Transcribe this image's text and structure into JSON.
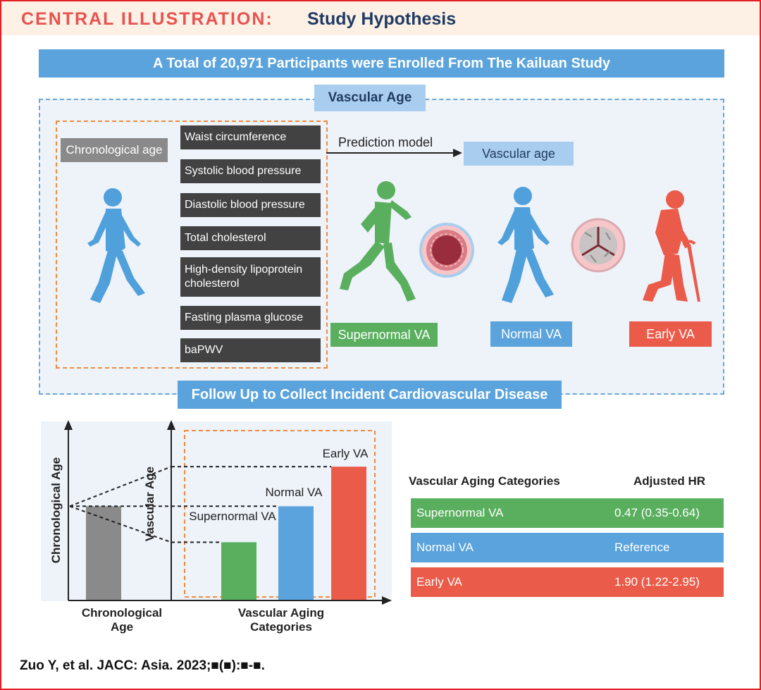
{
  "header": {
    "label": "CENTRAL ILLUSTRATION:",
    "title": "Study Hypothesis"
  },
  "banner_top": "A Total of 20,971 Participants were Enrolled From The Kailuan Study",
  "vascular_age_section": {
    "title": "Vascular Age",
    "chronological_age_label": "Chronological age",
    "variables": [
      "Waist circumference",
      "Systolic blood pressure",
      "Diastolic blood pressure",
      "Total cholesterol",
      "High-density lipoprotein cholesterol",
      "Fasting plasma glucose",
      "baPWV"
    ],
    "prediction_model_label": "Prediction model",
    "vascular_age_label": "Vascular age",
    "categories": [
      {
        "label": "Supernormal VA",
        "color": "#5aaf5f"
      },
      {
        "label": "Normal VA",
        "color": "#5aa3dc"
      },
      {
        "label": "Early VA",
        "color": "#ea5b4a"
      }
    ]
  },
  "banner_followup": "Follow Up to Collect Incident Cardiovascular Disease",
  "chart": {
    "y_label_left": "Chronological Age",
    "y_label_right": "Vascular Age",
    "x_label_left": "Chronological Age",
    "x_label_right": "Vascular Aging Categories",
    "bar_labels": {
      "supernormal": "Supernormal VA",
      "normal": "Normal VA",
      "early": "Early VA"
    },
    "colors": {
      "chronological": "#8a8a8a",
      "supernormal": "#5aaf5f",
      "normal": "#5aa3dc",
      "early": "#ea5b4a"
    }
  },
  "chart_data": {
    "type": "bar",
    "categories": [
      "Chronological Age",
      "Supernormal VA",
      "Normal VA",
      "Early VA"
    ],
    "values": [
      2.6,
      1.6,
      2.6,
      3.7
    ],
    "ylim": [
      0,
      4.8
    ],
    "title": "",
    "xlabel": "Vascular Aging Categories",
    "ylabel": "Vascular Age",
    "note": "schematic, unlabeled axis values"
  },
  "table": {
    "headers": [
      "Vascular Aging Categories",
      "Adjusted HR"
    ],
    "rows": [
      {
        "category": "Supernormal VA",
        "hr": "0.47 (0.35-0.64)",
        "color": "#5aaf5f"
      },
      {
        "category": "Normal VA",
        "hr": "Reference",
        "color": "#5aa3dc"
      },
      {
        "category": "Early VA",
        "hr": "1.90 (1.22-2.95)",
        "color": "#ea5b4a"
      }
    ]
  },
  "citation": "Zuo Y, et al. JACC: Asia. 2023;■(■):■-■."
}
